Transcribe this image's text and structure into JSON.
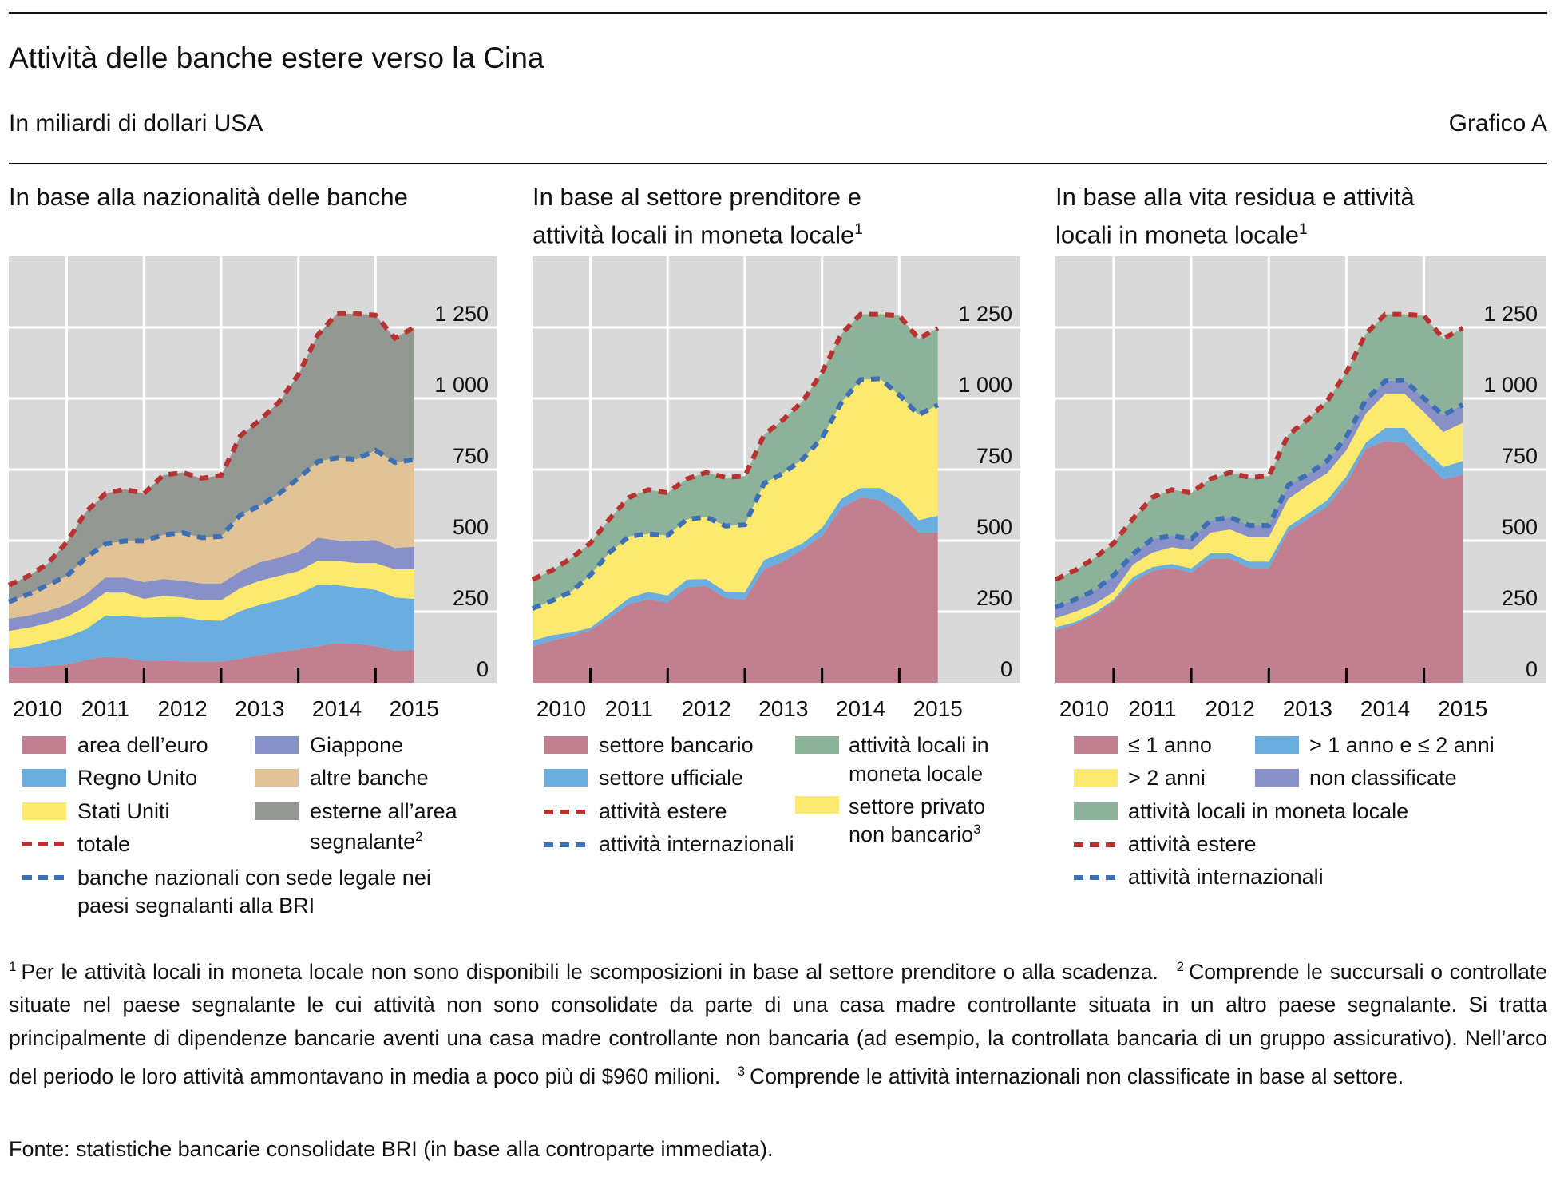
{
  "header": {
    "title": "Attività delle banche estere verso la Cina",
    "subtitle": "In miliardi di dollari USA",
    "chart_id": "Grafico A"
  },
  "colors": {
    "background": "#d9d9d9",
    "pink": "#c17f8f",
    "blue": "#6aaee0",
    "yellow": "#fde96e",
    "purple": "#8890c8",
    "tan": "#e2c395",
    "grey": "#939892",
    "green": "#8db29a",
    "red_dash": "#b83232",
    "blue_dash": "#3d6fb5"
  },
  "panels": [
    {
      "title_line1": "In base alla nazionalità delle banche",
      "title_line2": "",
      "title_sup": ""
    },
    {
      "title_line1": "In base al settore prenditore e",
      "title_line2": "attività locali in moneta locale",
      "title_sup": "1"
    },
    {
      "title_line1": "In base alla vita residua e attività",
      "title_line2": "locali in moneta locale",
      "title_sup": "1"
    }
  ],
  "legends": [
    {
      "area_euro": "area dell’euro",
      "regno_unito": "Regno Unito",
      "stati_uniti": "Stati Uniti",
      "totale": "totale",
      "banche_nazionali_1": "banche nazionali con sede legale nei",
      "banche_nazionali_2": "paesi segnalanti alla BRI",
      "giappone": "Giappone",
      "altre_banche": "altre banche",
      "esterne_1": "esterne all’area",
      "esterne_2": "segnalante",
      "esterne_sup": "2"
    },
    {
      "bancario": "settore bancario",
      "ufficiale": "settore ufficiale",
      "estere": "attività estere",
      "internazionali": "attività internazionali",
      "locali_1": "attività locali in",
      "locali_2": "moneta locale",
      "privato_1": "settore privato",
      "privato_2": "non bancario",
      "privato_sup": "3"
    },
    {
      "le1": "≤ 1 anno",
      "gt2": "> 2 anni",
      "locali": "attività locali in moneta locale",
      "estere": "attività estere",
      "internazionali": "attività internazionali",
      "b12": "> 1 anno e ≤ 2 anni",
      "non_class": "non classificate"
    }
  ],
  "footnotes": {
    "n1_mark": "1",
    "n1": "Per le attività locali in moneta locale non sono disponibili le scomposizioni in base al settore prenditore o alla scadenza.",
    "n2_mark": "2",
    "n2": "Comprende le succursali o controllate situate nel paese segnalante le cui attività non sono consolidate da parte di una casa madre controllante situata in un altro paese segnalante. Si tratta principalmente di dipendenze bancarie aventi una casa madre controllante non bancaria (ad esempio, la controllata bancaria di un gruppo assicurativo). Nell’arco del periodo le loro attività ammontavano in media a poco più di $960 milioni.",
    "n3_mark": "3",
    "n3": "Comprende le attività internazionali non classificate in base al settore."
  },
  "source": "Fonte: statistiche bancarie consolidate BRI (in base alla controparte immediata).",
  "chart_data": [
    {
      "type": "area",
      "stacked": true,
      "title": "In base alla nazionalità delle banche",
      "x": [
        "2010Q1",
        "2010Q2",
        "2010Q3",
        "2010Q4",
        "2011Q1",
        "2011Q2",
        "2011Q3",
        "2011Q4",
        "2012Q1",
        "2012Q2",
        "2012Q3",
        "2012Q4",
        "2013Q1",
        "2013Q2",
        "2013Q3",
        "2013Q4",
        "2014Q1",
        "2014Q2",
        "2014Q3",
        "2014Q4",
        "2015Q1",
        "2015Q2"
      ],
      "xtick_labels": [
        "2010",
        "2011",
        "2012",
        "2013",
        "2014",
        "2015"
      ],
      "yticks": [
        0,
        250,
        500,
        750,
        1000,
        1250
      ],
      "ytick_labels": [
        "0",
        "250",
        "500",
        "750",
        "1 000",
        "1 250"
      ],
      "ylim": [
        0,
        1500
      ],
      "grid": true,
      "y_axis_side": "right",
      "series": [
        {
          "name": "area dell’euro",
          "color": "#c17f8f",
          "values": [
            54,
            54,
            59,
            64,
            80,
            91,
            88,
            77,
            77,
            75,
            75,
            75,
            84,
            97,
            107,
            118,
            129,
            139,
            137,
            129,
            113,
            116
          ]
        },
        {
          "name": "Regno Unito",
          "color": "#6aaee0",
          "values": [
            64,
            75,
            86,
            97,
            108,
            145,
            148,
            152,
            154,
            156,
            145,
            143,
            168,
            177,
            183,
            193,
            216,
            204,
            198,
            198,
            187,
            179
          ]
        },
        {
          "name": "Stati Uniti",
          "color": "#fde96e",
          "values": [
            64,
            64,
            64,
            70,
            80,
            81,
            81,
            66,
            75,
            69,
            70,
            72,
            81,
            85,
            86,
            81,
            84,
            86,
            86,
            94,
            99,
            104
          ]
        },
        {
          "name": "Giappone",
          "color": "#8890c8",
          "values": [
            43,
            43,
            43,
            43,
            43,
            53,
            53,
            59,
            59,
            59,
            59,
            59,
            59,
            65,
            64,
            69,
            81,
            72,
            78,
            81,
            75,
            79
          ]
        },
        {
          "name": "altre banche",
          "color": "#e2c395",
          "values": [
            59,
            75,
            91,
            101,
            129,
            118,
            129,
            145,
            155,
            169,
            161,
            166,
            198,
            198,
            225,
            258,
            268,
            290,
            287,
            316,
            301,
            307
          ]
        },
        {
          "name": "esterne all’area segnalante",
          "color": "#939892",
          "values": [
            59,
            64,
            75,
            119,
            161,
            177,
            182,
            166,
            210,
            212,
            209,
            215,
            279,
            301,
            322,
            365,
            445,
            507,
            512,
            475,
            437,
            465
          ]
        }
      ],
      "lines": [
        {
          "name": "totale",
          "color": "#b83232",
          "values": [
            343,
            375,
            418,
            494,
            601,
            665,
            681,
            665,
            730,
            740,
            719,
            730,
            869,
            923,
            987,
            1084,
            1223,
            1298,
            1298,
            1293,
            1212,
            1250
          ]
        },
        {
          "name": "banche nazionali con sede legale nei paesi segnalanti alla BRI",
          "color": "#3d6fb5",
          "values": [
            284,
            311,
            343,
            375,
            440,
            488,
            499,
            499,
            520,
            528,
            510,
            515,
            590,
            622,
            665,
            719,
            778,
            791,
            786,
            818,
            775,
            785
          ]
        }
      ]
    },
    {
      "type": "area",
      "stacked": true,
      "title": "In base al settore prenditore e attività locali in moneta locale",
      "x": [
        "2010Q1",
        "2010Q2",
        "2010Q3",
        "2010Q4",
        "2011Q1",
        "2011Q2",
        "2011Q3",
        "2011Q4",
        "2012Q1",
        "2012Q2",
        "2012Q3",
        "2012Q4",
        "2013Q1",
        "2013Q2",
        "2013Q3",
        "2013Q4",
        "2014Q1",
        "2014Q2",
        "2014Q3",
        "2014Q4",
        "2015Q1",
        "2015Q2"
      ],
      "xtick_labels": [
        "2010",
        "2011",
        "2012",
        "2013",
        "2014",
        "2015"
      ],
      "yticks": [
        0,
        250,
        500,
        750,
        1000,
        1250
      ],
      "ytick_labels": [
        "0",
        "250",
        "500",
        "750",
        "1 000",
        "1 250"
      ],
      "ylim": [
        0,
        1500
      ],
      "grid": true,
      "y_axis_side": "right",
      "series": [
        {
          "name": "settore bancario",
          "color": "#c17f8f",
          "values": [
            127,
            148,
            164,
            186,
            228,
            277,
            293,
            282,
            336,
            341,
            298,
            293,
            400,
            427,
            470,
            518,
            615,
            652,
            642,
            593,
            529,
            529
          ]
        },
        {
          "name": "settore ufficiale",
          "color": "#6aaee0",
          "values": [
            21,
            19,
            13,
            7,
            17,
            21,
            27,
            25,
            27,
            24,
            22,
            25,
            32,
            32,
            21,
            27,
            32,
            33,
            43,
            54,
            43,
            59
          ]
        },
        {
          "name": "settore privato non bancario",
          "color": "#fde96e",
          "values": [
            113,
            121,
            143,
            186,
            214,
            217,
            204,
            211,
            212,
            218,
            231,
            238,
            269,
            279,
            296,
            317,
            338,
            381,
            384,
            365,
            370,
            389
          ]
        },
        {
          "name": "attività locali in moneta locale",
          "color": "#8db29a",
          "values": [
            102,
            107,
            118,
            112,
            118,
            137,
            155,
            150,
            142,
            157,
            171,
            171,
            171,
            188,
            203,
            230,
            242,
            230,
            227,
            279,
            268,
            271
          ]
        }
      ],
      "lines": [
        {
          "name": "attività estere",
          "color": "#b83232",
          "values": [
            363,
            395,
            438,
            491,
            577,
            652,
            679,
            668,
            717,
            740,
            722,
            727,
            872,
            926,
            990,
            1092,
            1227,
            1296,
            1296,
            1291,
            1210,
            1248
          ]
        },
        {
          "name": "attività internazionali",
          "color": "#3d6fb5",
          "values": [
            261,
            288,
            320,
            379,
            459,
            515,
            524,
            518,
            575,
            583,
            551,
            556,
            701,
            738,
            787,
            862,
            985,
            1066,
            1069,
            1012,
            942,
            977
          ]
        }
      ]
    },
    {
      "type": "area",
      "stacked": true,
      "title": "In base alla vita residua e attività locali in moneta locale",
      "x": [
        "2010Q1",
        "2010Q2",
        "2010Q3",
        "2010Q4",
        "2011Q1",
        "2011Q2",
        "2011Q3",
        "2011Q4",
        "2012Q1",
        "2012Q2",
        "2012Q3",
        "2012Q4",
        "2013Q1",
        "2013Q2",
        "2013Q3",
        "2013Q4",
        "2014Q1",
        "2014Q2",
        "2014Q3",
        "2014Q4",
        "2015Q1",
        "2015Q2"
      ],
      "xtick_labels": [
        "2010",
        "2011",
        "2012",
        "2013",
        "2014",
        "2015"
      ],
      "yticks": [
        0,
        250,
        500,
        750,
        1000,
        1250
      ],
      "ytick_labels": [
        "0",
        "250",
        "500",
        "750",
        "1 000",
        "1 250"
      ],
      "ylim": [
        0,
        1500
      ],
      "grid": true,
      "y_axis_side": "right",
      "series": [
        {
          "name": "≤ 1 anno",
          "color": "#c17f8f",
          "values": [
            185,
            206,
            238,
            286,
            356,
            394,
            404,
            388,
            437,
            437,
            404,
            404,
            533,
            576,
            619,
            705,
            823,
            850,
            844,
            780,
            716,
            732
          ]
        },
        {
          "name": "> 1 anno e ≤ 2 anni",
          "color": "#6aaee0",
          "values": [
            10,
            7,
            7,
            6,
            16,
            13,
            14,
            14,
            19,
            19,
            22,
            22,
            16,
            18,
            22,
            22,
            22,
            46,
            52,
            43,
            43,
            48
          ]
        },
        {
          "name": "> 2 anni",
          "color": "#fde96e",
          "values": [
            32,
            36,
            31,
            27,
            44,
            51,
            59,
            65,
            72,
            83,
            86,
            86,
            97,
            100,
            96,
            91,
            101,
            120,
            120,
            129,
            123,
            134
          ]
        },
        {
          "name": "non classificate",
          "color": "#8890c8",
          "values": [
            38,
            43,
            48,
            59,
            37,
            48,
            40,
            39,
            43,
            43,
            41,
            41,
            49,
            39,
            43,
            48,
            49,
            45,
            48,
            48,
            59,
            64
          ]
        },
        {
          "name": "attività locali in moneta locale",
          "color": "#8db29a",
          "values": [
            98,
            103,
            114,
            113,
            124,
            146,
            162,
            162,
            146,
            158,
            169,
            174,
            177,
            193,
            210,
            226,
            232,
            235,
            232,
            291,
            269,
            270
          ]
        }
      ],
      "lines": [
        {
          "name": "attività estere",
          "color": "#b83232",
          "values": [
            363,
            395,
            438,
            491,
            577,
            652,
            679,
            668,
            717,
            740,
            722,
            727,
            872,
            926,
            990,
            1092,
            1227,
            1296,
            1296,
            1291,
            1210,
            1248
          ]
        },
        {
          "name": "attività internazionali",
          "color": "#3d6fb5",
          "values": [
            265,
            292,
            324,
            378,
            453,
            506,
            517,
            506,
            571,
            582,
            553,
            553,
            695,
            733,
            780,
            866,
            995,
            1061,
            1064,
            1000,
            941,
            978
          ]
        }
      ]
    }
  ]
}
